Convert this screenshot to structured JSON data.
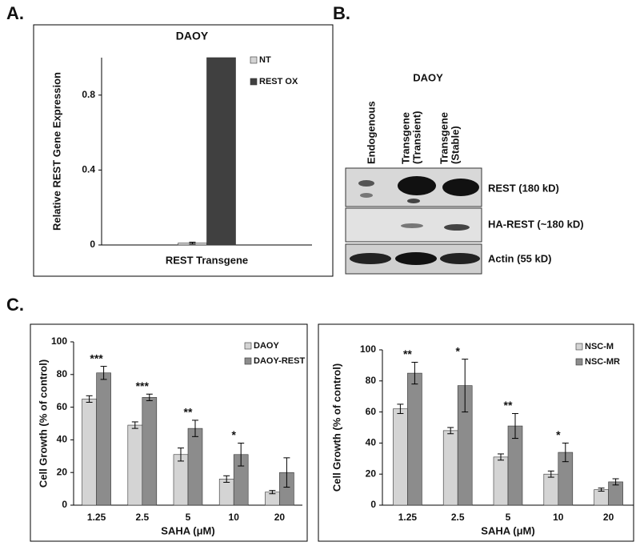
{
  "panel_labels": [
    "A.",
    "B.",
    "C."
  ],
  "chart_data": [
    {
      "type": "bar",
      "title": "DAOY",
      "ylabel": "Relative REST Gene Expression",
      "xlabel": "REST Transgene",
      "categories": [
        null
      ],
      "series": [
        {
          "name": "NT",
          "color": "#d4d4d4",
          "values": [
            0.01
          ],
          "errors": [
            0.005
          ]
        },
        {
          "name": "REST OX",
          "color": "#404040",
          "values": [
            1.0
          ]
        }
      ],
      "ylim": [
        0,
        1.0
      ],
      "yticks": [
        0,
        0.4,
        0.8
      ],
      "legend": "upper right"
    },
    {
      "type": "bar",
      "ylabel": "Cell Growth (% of control)",
      "xlabel": "SAHA (μM)",
      "categories": [
        "1.25",
        "2.5",
        "5",
        "10",
        "20"
      ],
      "series": [
        {
          "name": "DAOY",
          "color": "#d4d4d4",
          "values": [
            65,
            49,
            31,
            16,
            8
          ],
          "errors": [
            2,
            2,
            4,
            2,
            1
          ]
        },
        {
          "name": "DAOY-REST",
          "color": "#8c8c8c",
          "values": [
            81,
            66,
            47,
            31,
            20
          ],
          "errors": [
            4,
            2,
            5,
            7,
            9
          ]
        }
      ],
      "annotations": [
        "***",
        "***",
        "**",
        "*",
        null
      ],
      "ylim": [
        0,
        100
      ],
      "yticks": [
        0,
        20,
        40,
        60,
        80,
        100
      ],
      "legend": "upper right"
    },
    {
      "type": "bar",
      "ylabel": "Cell Growth (% of control)",
      "xlabel": "SAHA (μM)",
      "categories": [
        "1.25",
        "2.5",
        "5",
        "10",
        "20"
      ],
      "series": [
        {
          "name": "NSC-M",
          "color": "#d4d4d4",
          "values": [
            62,
            48,
            31,
            20,
            10
          ],
          "errors": [
            3,
            2,
            2,
            2,
            1
          ]
        },
        {
          "name": "NSC-MR",
          "color": "#8c8c8c",
          "values": [
            85,
            77,
            51,
            34,
            15
          ],
          "errors": [
            7,
            17,
            8,
            6,
            2
          ]
        }
      ],
      "annotations": [
        "**",
        "*",
        "**",
        "*",
        null
      ],
      "ylim": [
        0,
        100
      ],
      "yticks": [
        0,
        20,
        40,
        60,
        80,
        100
      ],
      "legend": "upper right"
    }
  ],
  "blot": {
    "title": "DAOY",
    "lanes": [
      [
        "Endogenous"
      ],
      [
        "Transgene",
        "(Transient)"
      ],
      [
        "Transgene",
        "(Stable)"
      ]
    ],
    "bands": [
      "REST (180 kD)",
      "HA-REST (~180 kD)",
      "Actin (55 kD)"
    ]
  }
}
